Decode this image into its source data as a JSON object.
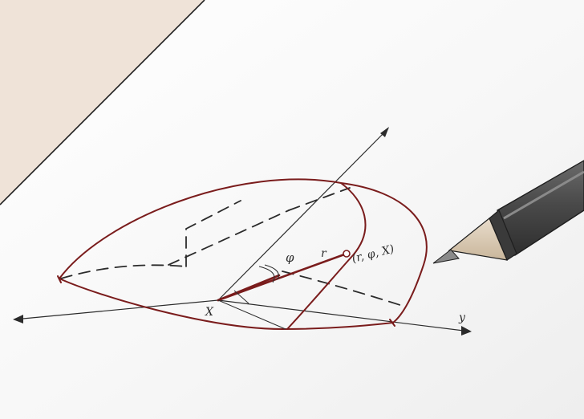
{
  "labels": {
    "phi": "φ",
    "r": "r",
    "point": "(r, φ, X)",
    "x_axis": "X",
    "y_axis": "y"
  },
  "colors": {
    "paper": "#ffffff",
    "desk": "#efe3d8",
    "ink": "#2b2b2b",
    "solid_outline": "#7a1c1c",
    "pen_body": "#4a4a4a",
    "pen_tip": "#d9c7b0"
  }
}
